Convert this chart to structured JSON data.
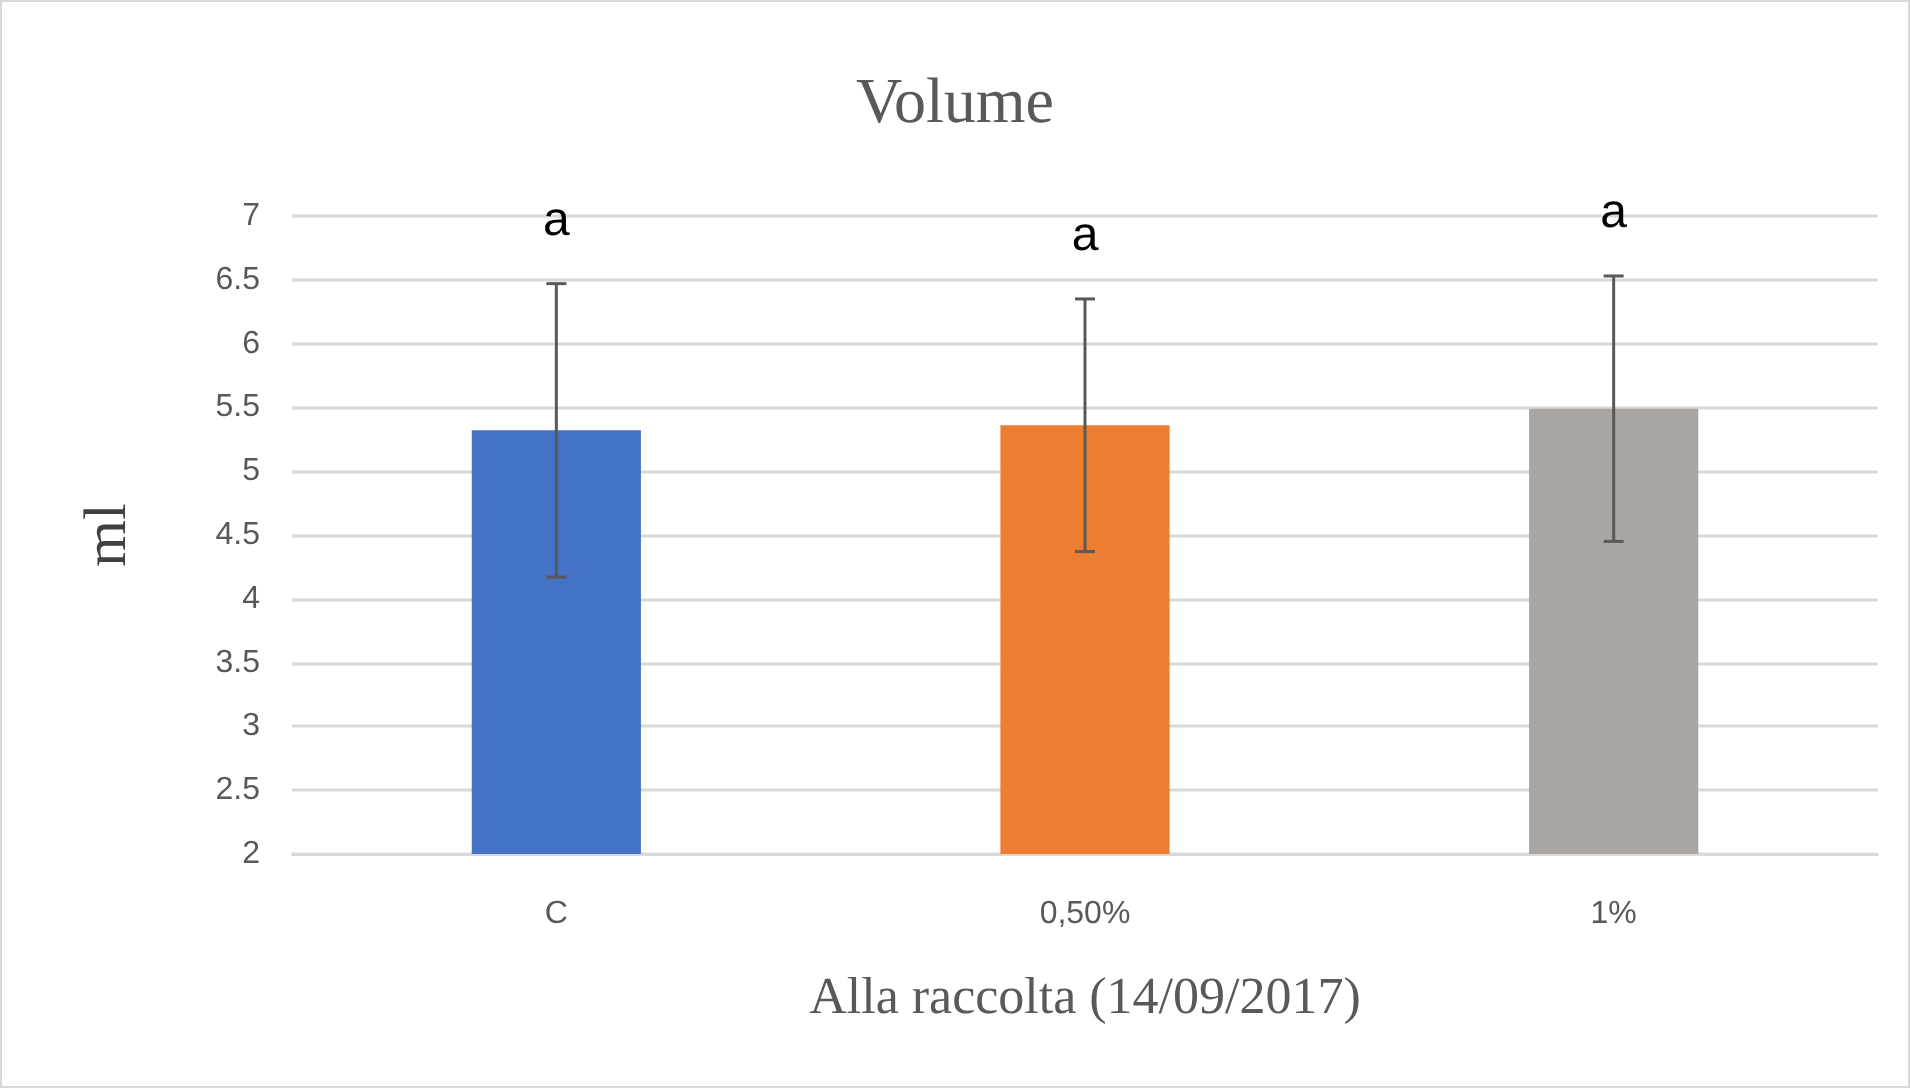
{
  "chart_data": {
    "type": "bar",
    "title": "Volume",
    "xlabel": "Alla raccolta (14/09/2017)",
    "ylabel": "ml",
    "categories": [
      "C",
      "0,50%",
      "1%"
    ],
    "values": [
      5.32,
      5.36,
      5.49
    ],
    "colors": [
      "#4472c4",
      "#ed7d31",
      "#a9a5a3"
    ],
    "errors": [
      1.15,
      0.99,
      1.04
    ],
    "ylim": [
      2,
      7
    ],
    "yticks": [
      2,
      2.5,
      3,
      3.5,
      4,
      4.5,
      5,
      5.5,
      6,
      6.5,
      7
    ],
    "grid": "y",
    "annotations": [
      "a",
      "a",
      "a"
    ]
  }
}
